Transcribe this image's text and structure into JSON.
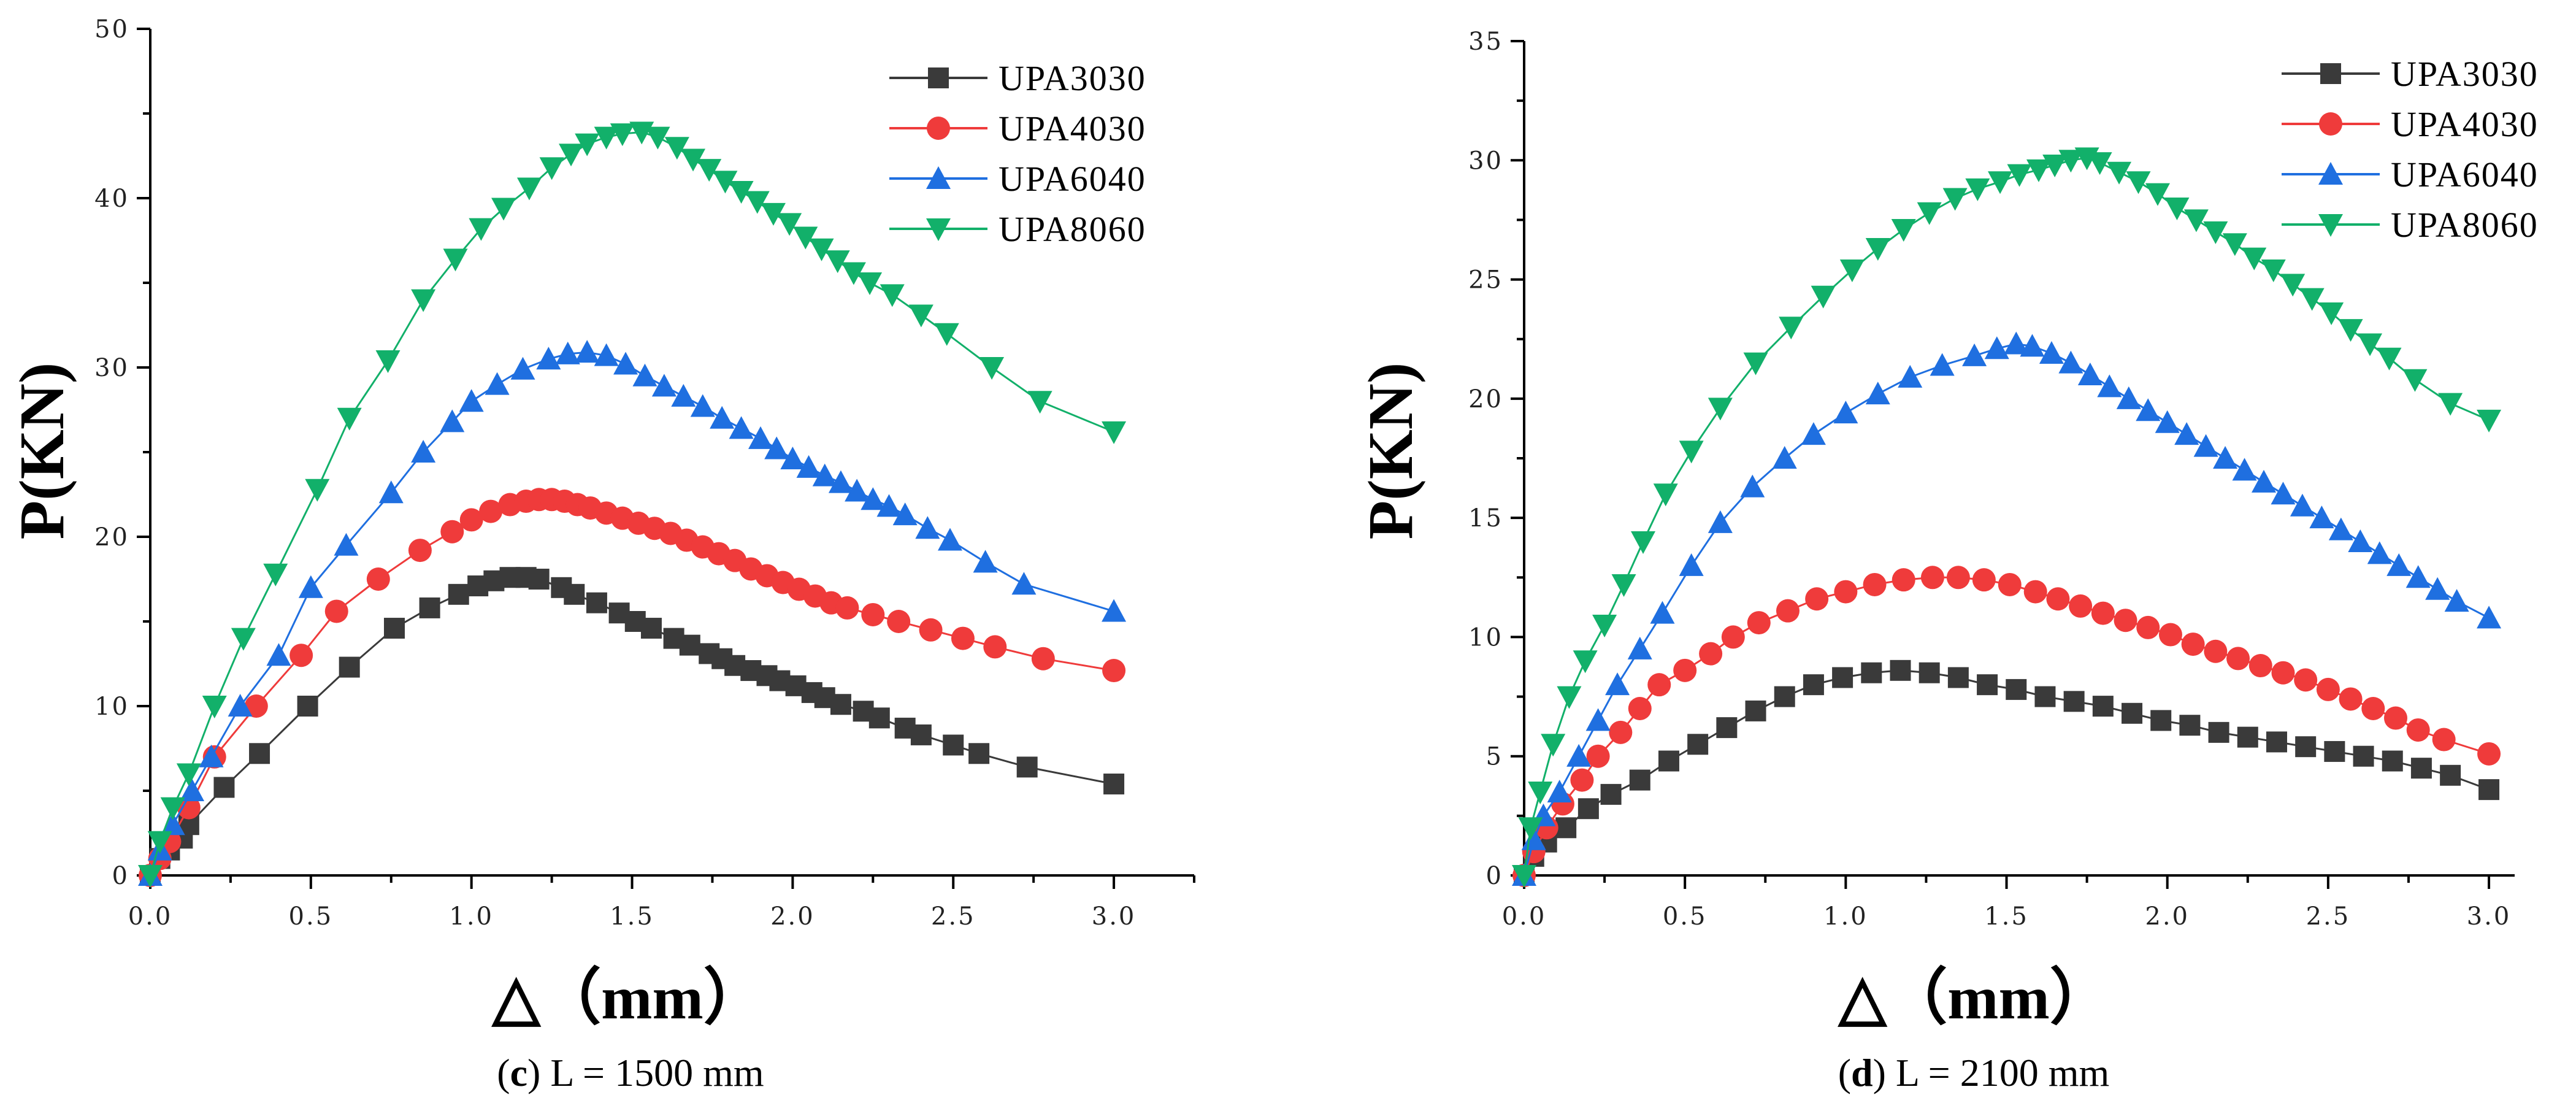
{
  "colors": {
    "UPA3030": "#3a3a3a",
    "UPA4030": "#ef3b3b",
    "UPA6040": "#1f6fe0",
    "UPA8060": "#12b06a"
  },
  "chart_data": [
    {
      "type": "line",
      "panel_letter": "c",
      "caption_text": " L = 1500 mm",
      "xlabel": "△（mm）",
      "ylabel": "P(KN)",
      "xlim": [
        0,
        3.25
      ],
      "ylim": [
        0,
        50
      ],
      "xticks": [
        0,
        0.5,
        1,
        1.5,
        2,
        2.5,
        3
      ],
      "xtick_labels": [
        "0.0",
        "0.5",
        "1.0",
        "1.5",
        "2.0",
        "2.5",
        "3.0"
      ],
      "yticks": [
        0,
        10,
        20,
        30,
        40,
        50
      ],
      "ytick_labels": [
        "0",
        "10",
        "20",
        "30",
        "40",
        "50"
      ],
      "legend": "top-right",
      "series": [
        {
          "name": "UPA3030",
          "marker": "square",
          "x": [
            0,
            0.03,
            0.06,
            0.1,
            0.12,
            0.23,
            0.34,
            0.49,
            0.62,
            0.76,
            0.87,
            0.96,
            1.02,
            1.07,
            1.12,
            1.17,
            1.21,
            1.28,
            1.32,
            1.39,
            1.46,
            1.51,
            1.56,
            1.63,
            1.68,
            1.74,
            1.78,
            1.82,
            1.87,
            1.92,
            1.96,
            2.01,
            2.06,
            2.1,
            2.15,
            2.22,
            2.27,
            2.35,
            2.4,
            2.5,
            2.58,
            2.73,
            3.0
          ],
          "y": [
            0,
            1.0,
            1.5,
            2.2,
            3.0,
            5.2,
            7.2,
            10,
            12.3,
            14.6,
            15.8,
            16.6,
            17.1,
            17.4,
            17.6,
            17.6,
            17.5,
            17.0,
            16.6,
            16.1,
            15.5,
            15.0,
            14.6,
            14.0,
            13.6,
            13.1,
            12.8,
            12.4,
            12.1,
            11.8,
            11.5,
            11.2,
            10.8,
            10.5,
            10.1,
            9.7,
            9.3,
            8.7,
            8.3,
            7.7,
            7.2,
            6.4,
            5.4
          ]
        },
        {
          "name": "UPA4030",
          "marker": "circle",
          "x": [
            0,
            0.03,
            0.06,
            0.12,
            0.2,
            0.33,
            0.47,
            0.58,
            0.71,
            0.84,
            0.94,
            1.0,
            1.06,
            1.12,
            1.17,
            1.21,
            1.25,
            1.29,
            1.33,
            1.37,
            1.42,
            1.47,
            1.52,
            1.57,
            1.62,
            1.67,
            1.72,
            1.77,
            1.82,
            1.87,
            1.92,
            1.97,
            2.02,
            2.07,
            2.12,
            2.17,
            2.25,
            2.33,
            2.43,
            2.53,
            2.63,
            2.78,
            3.0
          ],
          "y": [
            0,
            1.0,
            2.0,
            4.0,
            7.0,
            10.0,
            13.0,
            15.6,
            17.5,
            19.2,
            20.3,
            21.0,
            21.5,
            21.9,
            22.1,
            22.2,
            22.2,
            22.1,
            21.9,
            21.7,
            21.4,
            21.1,
            20.8,
            20.5,
            20.2,
            19.8,
            19.4,
            19.0,
            18.6,
            18.1,
            17.7,
            17.3,
            16.9,
            16.5,
            16.1,
            15.8,
            15.4,
            15.0,
            14.5,
            14.0,
            13.5,
            12.8,
            12.1
          ]
        },
        {
          "name": "UPA6040",
          "marker": "triangle-up",
          "x": [
            0,
            0.03,
            0.07,
            0.13,
            0.19,
            0.28,
            0.4,
            0.5,
            0.61,
            0.75,
            0.85,
            0.94,
            1.0,
            1.08,
            1.16,
            1.24,
            1.3,
            1.36,
            1.42,
            1.48,
            1.54,
            1.6,
            1.66,
            1.72,
            1.78,
            1.84,
            1.9,
            1.95,
            2.0,
            2.05,
            2.1,
            2.15,
            2.2,
            2.25,
            2.3,
            2.35,
            2.42,
            2.49,
            2.6,
            2.72,
            3.0
          ],
          "y": [
            0,
            1.5,
            3.0,
            5.0,
            7.0,
            10.0,
            13.0,
            17.0,
            19.5,
            22.6,
            25.0,
            26.8,
            28.0,
            29.0,
            29.9,
            30.5,
            30.8,
            30.9,
            30.7,
            30.2,
            29.5,
            28.9,
            28.3,
            27.7,
            27.0,
            26.4,
            25.8,
            25.2,
            24.6,
            24.1,
            23.6,
            23.2,
            22.7,
            22.2,
            21.8,
            21.3,
            20.5,
            19.8,
            18.5,
            17.2,
            15.6
          ]
        },
        {
          "name": "UPA8060",
          "marker": "triangle-down",
          "x": [
            0,
            0.03,
            0.07,
            0.12,
            0.2,
            0.29,
            0.39,
            0.52,
            0.62,
            0.74,
            0.85,
            0.95,
            1.03,
            1.1,
            1.18,
            1.25,
            1.31,
            1.36,
            1.42,
            1.47,
            1.53,
            1.58,
            1.64,
            1.69,
            1.74,
            1.79,
            1.84,
            1.89,
            1.94,
            1.99,
            2.04,
            2.09,
            2.14,
            2.19,
            2.24,
            2.31,
            2.4,
            2.48,
            2.62,
            2.77,
            3.0
          ],
          "y": [
            0,
            2.0,
            4.0,
            6.0,
            10.0,
            14.0,
            17.8,
            22.8,
            27.0,
            30.4,
            34.0,
            36.4,
            38.2,
            39.4,
            40.6,
            41.8,
            42.6,
            43.2,
            43.6,
            43.8,
            43.9,
            43.6,
            43.0,
            42.3,
            41.7,
            41.0,
            40.4,
            39.8,
            39.1,
            38.5,
            37.7,
            37.0,
            36.3,
            35.6,
            35.0,
            34.3,
            33.1,
            32.0,
            30.0,
            28.0,
            26.2
          ]
        }
      ]
    },
    {
      "type": "line",
      "panel_letter": "d",
      "caption_text": " L = 2100 mm",
      "xlabel": "△（mm）",
      "ylabel": "P(KN)",
      "xlim": [
        0,
        3.08
      ],
      "ylim": [
        0,
        35
      ],
      "xticks": [
        0,
        0.5,
        1,
        1.5,
        2,
        2.5,
        3
      ],
      "xtick_labels": [
        "0.0",
        "0.5",
        "1.0",
        "1.5",
        "2.0",
        "2.5",
        "3.0"
      ],
      "yticks": [
        0,
        5,
        10,
        15,
        20,
        25,
        30,
        35
      ],
      "ytick_labels": [
        "0",
        "5",
        "10",
        "15",
        "20",
        "25",
        "30",
        "35"
      ],
      "legend": "top-right",
      "series": [
        {
          "name": "UPA3030",
          "marker": "square",
          "x": [
            0,
            0.03,
            0.07,
            0.13,
            0.2,
            0.27,
            0.36,
            0.45,
            0.54,
            0.63,
            0.72,
            0.81,
            0.9,
            0.99,
            1.08,
            1.17,
            1.26,
            1.35,
            1.44,
            1.53,
            1.62,
            1.71,
            1.8,
            1.89,
            1.98,
            2.07,
            2.16,
            2.25,
            2.34,
            2.43,
            2.52,
            2.61,
            2.7,
            2.79,
            2.88,
            3.0
          ],
          "y": [
            0,
            0.8,
            1.4,
            2.0,
            2.8,
            3.4,
            4.0,
            4.8,
            5.5,
            6.2,
            6.9,
            7.5,
            8.0,
            8.3,
            8.5,
            8.6,
            8.5,
            8.3,
            8.0,
            7.8,
            7.5,
            7.3,
            7.1,
            6.8,
            6.5,
            6.3,
            6.0,
            5.8,
            5.6,
            5.4,
            5.2,
            5.0,
            4.8,
            4.5,
            4.2,
            3.6
          ]
        },
        {
          "name": "UPA4030",
          "marker": "circle",
          "x": [
            0,
            0.03,
            0.07,
            0.12,
            0.18,
            0.23,
            0.3,
            0.36,
            0.42,
            0.5,
            0.58,
            0.65,
            0.73,
            0.82,
            0.91,
            1.0,
            1.09,
            1.18,
            1.27,
            1.35,
            1.43,
            1.51,
            1.59,
            1.66,
            1.73,
            1.8,
            1.87,
            1.94,
            2.01,
            2.08,
            2.15,
            2.22,
            2.29,
            2.36,
            2.43,
            2.5,
            2.57,
            2.64,
            2.71,
            2.78,
            2.86,
            3.0
          ],
          "y": [
            0,
            1.0,
            2.0,
            3.0,
            4.0,
            5.0,
            6.0,
            7.0,
            8.0,
            8.6,
            9.3,
            10.0,
            10.6,
            11.1,
            11.6,
            11.9,
            12.2,
            12.4,
            12.5,
            12.5,
            12.4,
            12.2,
            11.9,
            11.6,
            11.3,
            11.0,
            10.7,
            10.4,
            10.1,
            9.7,
            9.4,
            9.1,
            8.8,
            8.5,
            8.2,
            7.8,
            7.4,
            7.0,
            6.6,
            6.1,
            5.7,
            5.1
          ]
        },
        {
          "name": "UPA6040",
          "marker": "triangle-up",
          "x": [
            0,
            0.03,
            0.06,
            0.11,
            0.17,
            0.23,
            0.29,
            0.36,
            0.43,
            0.52,
            0.61,
            0.71,
            0.81,
            0.9,
            1.0,
            1.1,
            1.2,
            1.3,
            1.4,
            1.47,
            1.53,
            1.58,
            1.64,
            1.7,
            1.76,
            1.82,
            1.88,
            1.94,
            2.0,
            2.06,
            2.12,
            2.18,
            2.24,
            2.3,
            2.36,
            2.42,
            2.48,
            2.54,
            2.6,
            2.66,
            2.72,
            2.78,
            2.84,
            2.9,
            3.0
          ],
          "y": [
            0,
            1.5,
            2.5,
            3.5,
            5.0,
            6.5,
            8.0,
            9.5,
            11.0,
            13.0,
            14.8,
            16.3,
            17.5,
            18.5,
            19.4,
            20.2,
            20.9,
            21.4,
            21.8,
            22.1,
            22.3,
            22.2,
            21.9,
            21.5,
            21.0,
            20.5,
            20.0,
            19.5,
            19.0,
            18.5,
            18.0,
            17.5,
            17.0,
            16.5,
            16.0,
            15.5,
            15.0,
            14.5,
            14.0,
            13.5,
            13.0,
            12.5,
            12.0,
            11.5,
            10.8
          ]
        },
        {
          "name": "UPA8060",
          "marker": "triangle-down",
          "x": [
            0,
            0.02,
            0.05,
            0.09,
            0.14,
            0.19,
            0.25,
            0.31,
            0.37,
            0.44,
            0.52,
            0.61,
            0.72,
            0.83,
            0.93,
            1.02,
            1.1,
            1.18,
            1.26,
            1.34,
            1.41,
            1.48,
            1.54,
            1.6,
            1.65,
            1.7,
            1.75,
            1.79,
            1.85,
            1.91,
            1.97,
            2.03,
            2.09,
            2.15,
            2.21,
            2.27,
            2.33,
            2.39,
            2.45,
            2.51,
            2.57,
            2.63,
            2.69,
            2.77,
            2.88,
            3.0
          ],
          "y": [
            0,
            2.0,
            3.5,
            5.5,
            7.5,
            9.0,
            10.5,
            12.2,
            14.0,
            16.0,
            17.8,
            19.6,
            21.5,
            23.0,
            24.3,
            25.4,
            26.3,
            27.1,
            27.8,
            28.4,
            28.8,
            29.1,
            29.4,
            29.6,
            29.8,
            30.0,
            30.1,
            29.9,
            29.5,
            29.1,
            28.6,
            28.0,
            27.5,
            27.0,
            26.5,
            25.9,
            25.4,
            24.8,
            24.2,
            23.6,
            22.9,
            22.3,
            21.7,
            20.8,
            19.8,
            19.1
          ]
        }
      ]
    }
  ]
}
